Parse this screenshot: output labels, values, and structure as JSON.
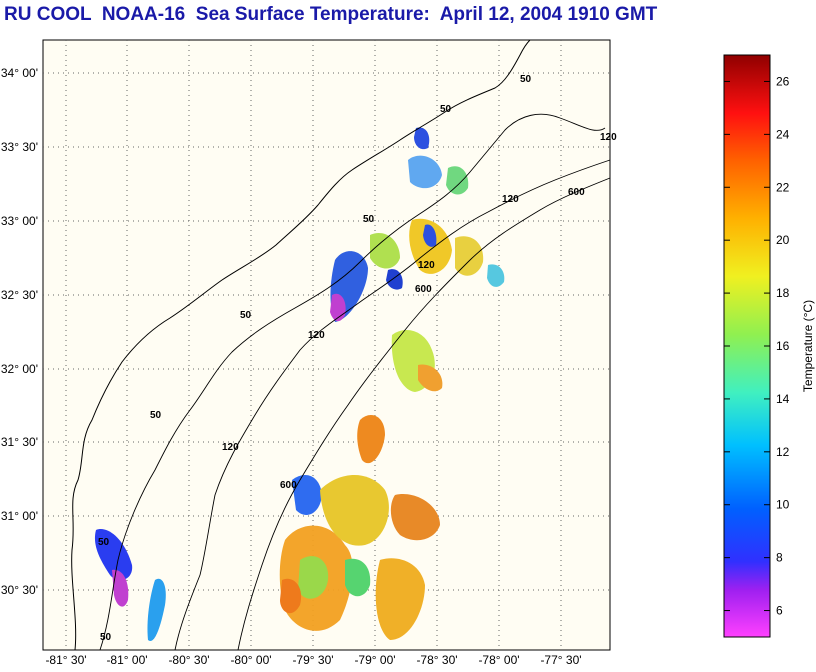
{
  "title": "RU COOL  NOAA-16  Sea Surface Temperature:  April 12, 2004 1910 GMT",
  "map": {
    "lat_labels": [
      "34° 00'",
      "33° 30'",
      "33° 00'",
      "32° 30'",
      "32° 00'",
      "31° 30'",
      "31° 00'",
      "30° 30'"
    ],
    "lon_labels": [
      "-81° 30'",
      "-81° 00'",
      "-80° 30'",
      "-80° 00'",
      "-79° 30'",
      "-79° 00'",
      "-78° 30'",
      "-78° 00'",
      "-77° 30'"
    ],
    "isobath_labels": [
      "50",
      "50",
      "50",
      "50",
      "50",
      "50",
      "50",
      "120",
      "120",
      "120",
      "120",
      "120",
      "600",
      "600",
      "600"
    ],
    "grid": true,
    "colors": {
      "land_bg": "#fffdf3",
      "grid": "#555555",
      "coast": "#000000"
    }
  },
  "colorbar": {
    "label": "Temperature (°C)",
    "ticks": [
      "6",
      "8",
      "10",
      "12",
      "14",
      "16",
      "18",
      "20",
      "22",
      "24",
      "26"
    ],
    "tick_values": [
      6,
      8,
      10,
      12,
      14,
      16,
      18,
      20,
      22,
      24,
      26
    ],
    "range": [
      5,
      27
    ]
  }
}
